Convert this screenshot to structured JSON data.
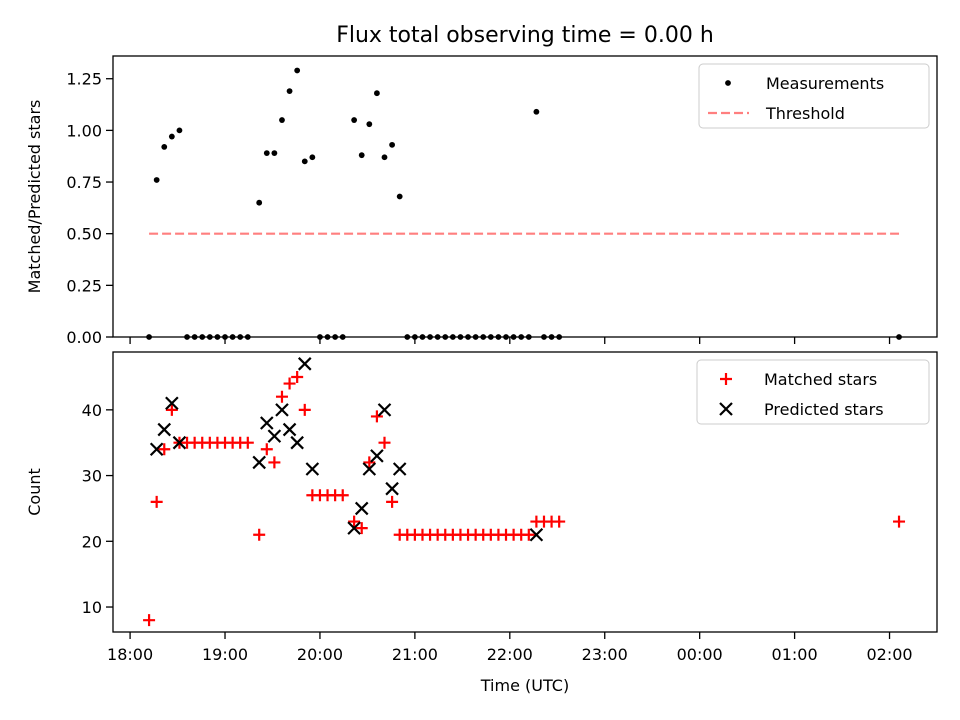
{
  "title": "Flux total observing time = 0.00 h",
  "colors": {
    "measurement": "#000000",
    "threshold": "#ff7f7f",
    "matched": "#ff0000",
    "predicted": "#000000"
  },
  "chart_data": [
    {
      "type": "scatter",
      "panel": "top",
      "title": "Flux total observing time = 0.00 h",
      "xlabel": "",
      "ylabel": "Matched/Predicted stars",
      "x_unit": "hours since 18:00 UTC",
      "xlim": [
        -0.18,
        8.5
      ],
      "ylim": [
        0.0,
        1.36
      ],
      "yticks": [
        0.0,
        0.25,
        0.5,
        0.75,
        1.0,
        1.25
      ],
      "ytick_labels": [
        "0.00",
        "0.25",
        "0.50",
        "0.75",
        "1.00",
        "1.25"
      ],
      "xticks": [
        0,
        1,
        2,
        3,
        4,
        5,
        6,
        7,
        8
      ],
      "xtick_labels": [
        "",
        "",
        "",
        "",
        "",
        "",
        "",
        "",
        ""
      ],
      "legend": {
        "position": "top-right",
        "entries": [
          "Measurements",
          "Threshold"
        ]
      },
      "series": [
        {
          "name": "Measurements",
          "marker": "dot",
          "points": [
            [
              0.2,
              0
            ],
            [
              0.28,
              0.76
            ],
            [
              0.36,
              0.92
            ],
            [
              0.44,
              0.97
            ],
            [
              0.52,
              1.0
            ],
            [
              0.6,
              0
            ],
            [
              0.68,
              0
            ],
            [
              0.76,
              0
            ],
            [
              0.84,
              0
            ],
            [
              0.92,
              0
            ],
            [
              1.0,
              0
            ],
            [
              1.08,
              0
            ],
            [
              1.16,
              0
            ],
            [
              1.24,
              0
            ],
            [
              1.36,
              0.65
            ],
            [
              1.44,
              0.89
            ],
            [
              1.52,
              0.89
            ],
            [
              1.6,
              1.05
            ],
            [
              1.68,
              1.19
            ],
            [
              1.76,
              1.29
            ],
            [
              1.84,
              0.85
            ],
            [
              1.92,
              0.87
            ],
            [
              2.0,
              0
            ],
            [
              2.08,
              0
            ],
            [
              2.16,
              0
            ],
            [
              2.24,
              0
            ],
            [
              2.36,
              1.05
            ],
            [
              2.44,
              0.88
            ],
            [
              2.52,
              1.03
            ],
            [
              2.6,
              1.18
            ],
            [
              2.68,
              0.87
            ],
            [
              2.76,
              0.93
            ],
            [
              2.84,
              0.68
            ],
            [
              2.92,
              0
            ],
            [
              3.0,
              0
            ],
            [
              3.08,
              0
            ],
            [
              3.16,
              0
            ],
            [
              3.24,
              0
            ],
            [
              3.32,
              0
            ],
            [
              3.4,
              0
            ],
            [
              3.48,
              0
            ],
            [
              3.56,
              0
            ],
            [
              3.64,
              0
            ],
            [
              3.72,
              0
            ],
            [
              3.8,
              0
            ],
            [
              3.88,
              0
            ],
            [
              3.96,
              0
            ],
            [
              4.04,
              0
            ],
            [
              4.12,
              0
            ],
            [
              4.2,
              0
            ],
            [
              4.28,
              1.09
            ],
            [
              4.36,
              0
            ],
            [
              4.44,
              0
            ],
            [
              4.52,
              0
            ],
            [
              8.1,
              0
            ]
          ]
        },
        {
          "name": "Threshold",
          "marker": "dashed-line",
          "points": [
            [
              0.2,
              0.5
            ],
            [
              8.1,
              0.5
            ]
          ]
        }
      ]
    },
    {
      "type": "scatter",
      "panel": "bottom",
      "title": "",
      "xlabel": "Time (UTC)",
      "ylabel": "Count",
      "x_unit": "hours since 18:00 UTC",
      "xlim": [
        -0.18,
        8.5
      ],
      "ylim": [
        6.2,
        48.8
      ],
      "yticks": [
        10,
        20,
        30,
        40
      ],
      "ytick_labels": [
        "10",
        "20",
        "30",
        "40"
      ],
      "xticks": [
        0,
        1,
        2,
        3,
        4,
        5,
        6,
        7,
        8
      ],
      "xtick_labels": [
        "18:00",
        "19:00",
        "20:00",
        "21:00",
        "22:00",
        "23:00",
        "00:00",
        "01:00",
        "02:00"
      ],
      "legend": {
        "position": "top-right",
        "entries": [
          "Matched stars",
          "Predicted stars"
        ]
      },
      "series": [
        {
          "name": "Matched stars",
          "marker": "plus",
          "points": [
            [
              0.2,
              8
            ],
            [
              0.28,
              26
            ],
            [
              0.36,
              34
            ],
            [
              0.44,
              40
            ],
            [
              0.52,
              35
            ],
            [
              0.6,
              35
            ],
            [
              0.68,
              35
            ],
            [
              0.76,
              35
            ],
            [
              0.84,
              35
            ],
            [
              0.92,
              35
            ],
            [
              1.0,
              35
            ],
            [
              1.08,
              35
            ],
            [
              1.16,
              35
            ],
            [
              1.24,
              35
            ],
            [
              1.36,
              21
            ],
            [
              1.44,
              34
            ],
            [
              1.52,
              32
            ],
            [
              1.6,
              42
            ],
            [
              1.68,
              44
            ],
            [
              1.76,
              45
            ],
            [
              1.84,
              40
            ],
            [
              1.92,
              27
            ],
            [
              2.0,
              27
            ],
            [
              2.08,
              27
            ],
            [
              2.16,
              27
            ],
            [
              2.24,
              27
            ],
            [
              2.36,
              23
            ],
            [
              2.44,
              22
            ],
            [
              2.52,
              32
            ],
            [
              2.6,
              39
            ],
            [
              2.68,
              35
            ],
            [
              2.76,
              26
            ],
            [
              2.84,
              21
            ],
            [
              2.92,
              21
            ],
            [
              3.0,
              21
            ],
            [
              3.08,
              21
            ],
            [
              3.16,
              21
            ],
            [
              3.24,
              21
            ],
            [
              3.32,
              21
            ],
            [
              3.4,
              21
            ],
            [
              3.48,
              21
            ],
            [
              3.56,
              21
            ],
            [
              3.64,
              21
            ],
            [
              3.72,
              21
            ],
            [
              3.8,
              21
            ],
            [
              3.88,
              21
            ],
            [
              3.96,
              21
            ],
            [
              4.04,
              21
            ],
            [
              4.12,
              21
            ],
            [
              4.2,
              21
            ],
            [
              4.28,
              23
            ],
            [
              4.36,
              23
            ],
            [
              4.44,
              23
            ],
            [
              4.52,
              23
            ],
            [
              8.1,
              23
            ]
          ]
        },
        {
          "name": "Predicted stars",
          "marker": "x",
          "points": [
            [
              0.28,
              34
            ],
            [
              0.36,
              37
            ],
            [
              0.44,
              41
            ],
            [
              0.52,
              35
            ],
            [
              1.36,
              32
            ],
            [
              1.44,
              38
            ],
            [
              1.52,
              36
            ],
            [
              1.6,
              40
            ],
            [
              1.68,
              37
            ],
            [
              1.76,
              35
            ],
            [
              1.84,
              47
            ],
            [
              1.92,
              31
            ],
            [
              2.36,
              22
            ],
            [
              2.44,
              25
            ],
            [
              2.52,
              31
            ],
            [
              2.6,
              33
            ],
            [
              2.68,
              40
            ],
            [
              2.76,
              28
            ],
            [
              2.84,
              31
            ],
            [
              4.28,
              21
            ]
          ]
        }
      ]
    }
  ]
}
